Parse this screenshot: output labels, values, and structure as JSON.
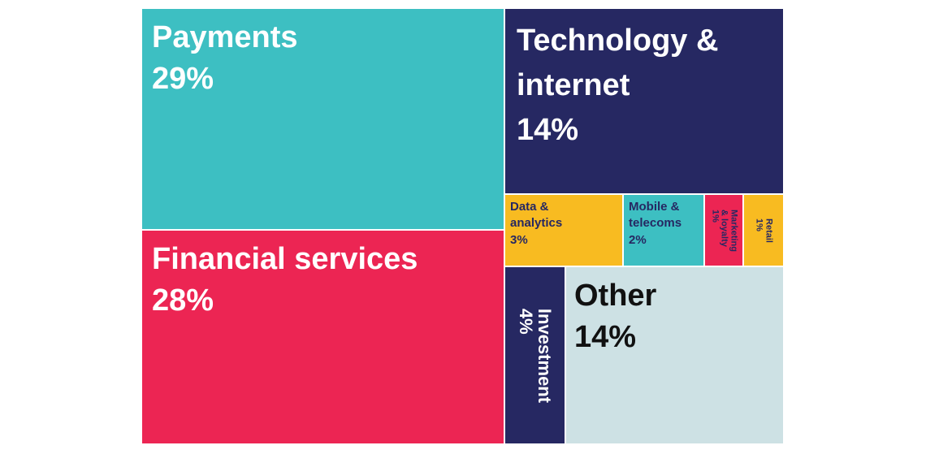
{
  "chart_data": {
    "type": "treemap",
    "title": "",
    "items": [
      {
        "label": "Payments",
        "value": 29,
        "value_label": "29%",
        "color": "#3dbfc2",
        "text_color": "#ffffff"
      },
      {
        "label": "Financial services",
        "value": 28,
        "value_label": "28%",
        "color": "#ec2553",
        "text_color": "#ffffff"
      },
      {
        "label": "Technology & internet",
        "value": 14,
        "value_label": "14%",
        "color": "#262862",
        "text_color": "#ffffff"
      },
      {
        "label": "Data & analytics",
        "value": 3,
        "value_label": "3%",
        "color": "#f8bb21",
        "text_color": "#262862"
      },
      {
        "label": "Mobile & telecoms",
        "value": 2,
        "value_label": "2%",
        "color": "#3dbfc2",
        "text_color": "#262862"
      },
      {
        "label": "Marketing & loyalty",
        "value": 1,
        "value_label": "1%",
        "color": "#ec2553",
        "text_color": "#262862"
      },
      {
        "label": "Retail",
        "value": 1,
        "value_label": "1%",
        "color": "#f8bb21",
        "text_color": "#262862"
      },
      {
        "label": "Investment",
        "value": 4,
        "value_label": "4%",
        "color": "#262862",
        "text_color": "#ffffff"
      },
      {
        "label": "Other",
        "value": 14,
        "value_label": "14%",
        "color": "#cde1e4",
        "text_color": "#111111"
      }
    ]
  }
}
